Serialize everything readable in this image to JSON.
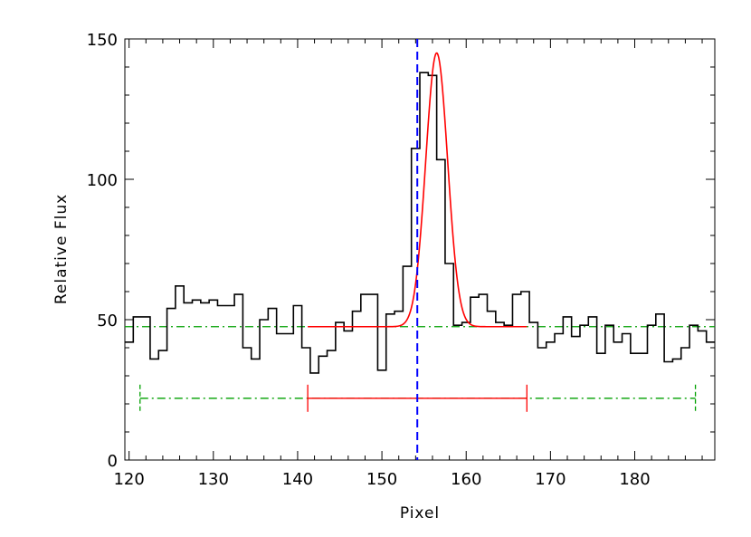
{
  "chart_data": {
    "type": "line",
    "title": "",
    "xlabel": "Pixel",
    "ylabel": "Relative Flux",
    "xlim": [
      119.5,
      189.5
    ],
    "ylim": [
      0,
      150
    ],
    "x_ticks": [
      120,
      130,
      140,
      150,
      160,
      170,
      180
    ],
    "y_ticks": [
      0,
      50,
      100,
      150
    ],
    "x_minor_step": 2,
    "y_minor_step": 10,
    "grid": false,
    "legend": "none",
    "colors": {
      "spectrum": "#000000",
      "fit": "#ff0000",
      "center_line": "#0000ff",
      "baseline": "#00a000"
    },
    "series": [
      {
        "role": "spectrum",
        "style": "steps",
        "x": [
          120,
          121,
          122,
          123,
          124,
          125,
          126,
          127,
          128,
          129,
          130,
          131,
          132,
          133,
          134,
          135,
          136,
          137,
          138,
          139,
          140,
          141,
          142,
          143,
          144,
          145,
          146,
          147,
          148,
          149,
          150,
          151,
          152,
          153,
          154,
          155,
          156,
          157,
          158,
          159,
          160,
          161,
          162,
          163,
          164,
          165,
          166,
          167,
          168,
          169,
          170,
          171,
          172,
          173,
          174,
          175,
          176,
          177,
          178,
          179,
          180,
          181,
          182,
          183,
          184,
          185,
          186,
          187,
          188,
          189
        ],
        "y": [
          42,
          51,
          51,
          36,
          39,
          54,
          62,
          56,
          57,
          56,
          57,
          55,
          55,
          59,
          40,
          36,
          50,
          54,
          45,
          45,
          55,
          40,
          31,
          37,
          39,
          49,
          46,
          53,
          59,
          59,
          32,
          52,
          53,
          69,
          111,
          138,
          137,
          107,
          70,
          48,
          49,
          58,
          59,
          53,
          49,
          48,
          59,
          60,
          49,
          40,
          42,
          45,
          51,
          44,
          48,
          51,
          38,
          48,
          42,
          45,
          38,
          38,
          48,
          52,
          35,
          36,
          40,
          48,
          46,
          42
        ]
      },
      {
        "role": "fit",
        "style": "gaussian",
        "x_range": [
          141.2,
          167.2
        ],
        "baseline": 47.5,
        "amplitude": 97.5,
        "center": 156.5,
        "sigma": 1.3
      }
    ],
    "annotations": {
      "center_line_x": 154.2,
      "baseline_level": 47.5,
      "continuum_window": {
        "y": 22,
        "x_start": 121.3,
        "x_end": 187.2
      },
      "fit_window": {
        "y": 22,
        "x_start": 141.2,
        "x_end": 167.2
      }
    }
  }
}
